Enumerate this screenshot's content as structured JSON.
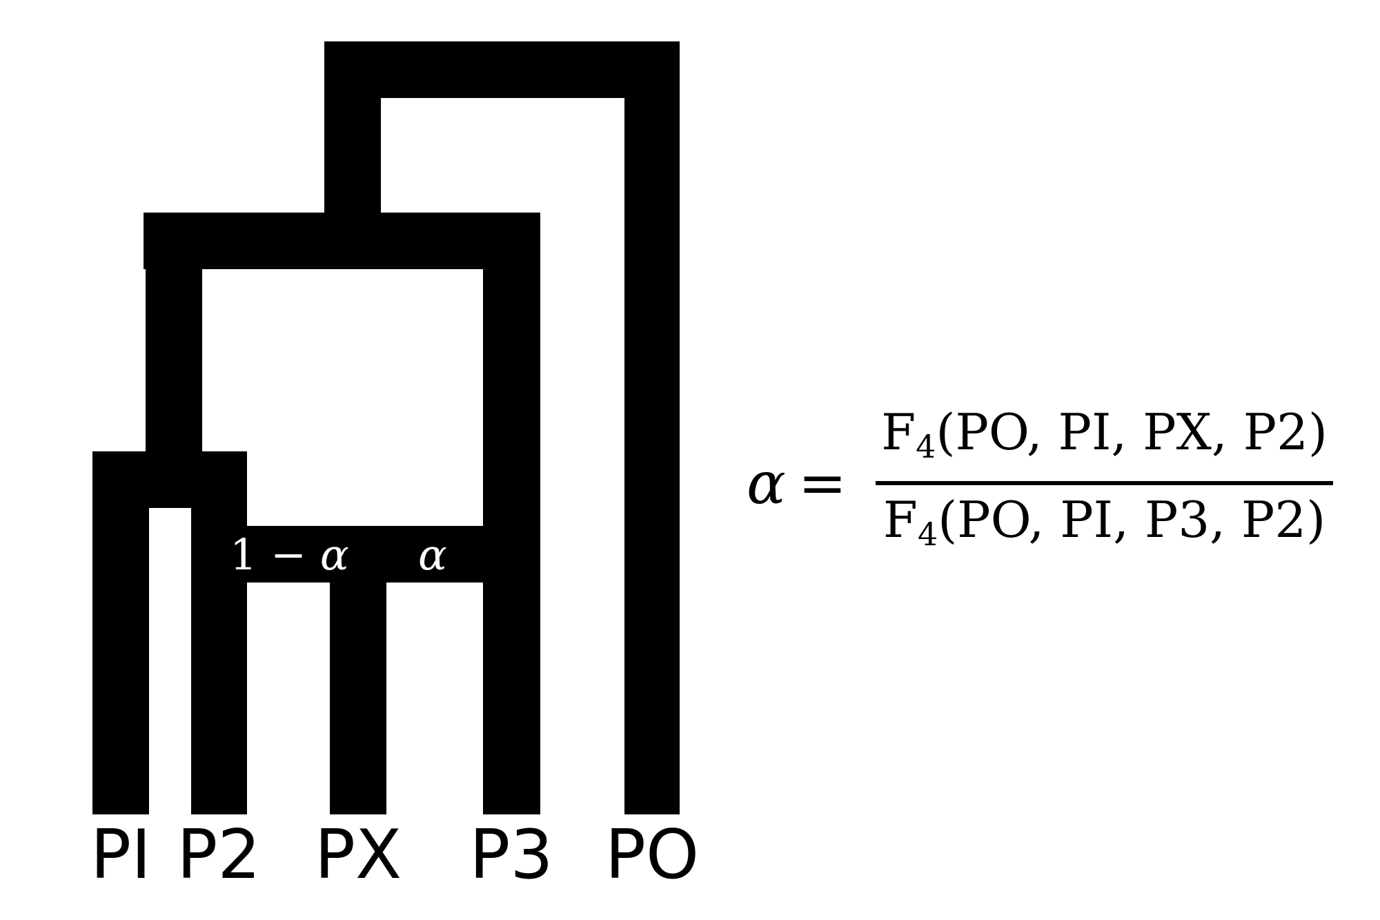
{
  "tree": {
    "tips": [
      "PI",
      "P2",
      "PX",
      "P3",
      "PO"
    ],
    "admixture_weights": {
      "left_prefix": "1 − ",
      "left_symbol": "α",
      "right_symbol": "α"
    },
    "colors": {
      "branch": "#000000",
      "background": "#ffffff",
      "weight_text": "#ffffff"
    }
  },
  "formula": {
    "lhs": "α",
    "equals": "=",
    "numerator": {
      "func": "F",
      "sub": "4",
      "args": "(PO, PI, PX, P2)"
    },
    "denominator": {
      "func": "F",
      "sub": "4",
      "args": "(PO, PI, P3, P2)"
    }
  }
}
